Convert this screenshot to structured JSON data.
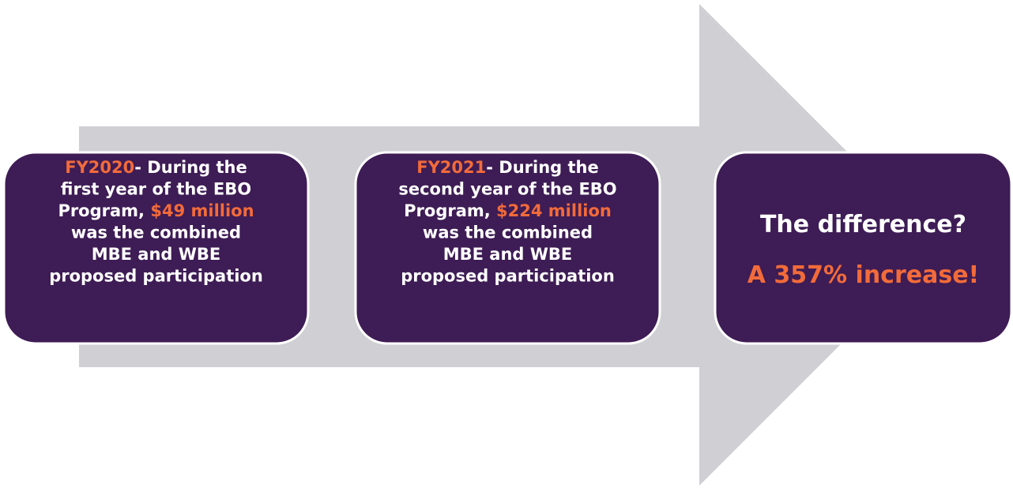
{
  "boxes": [
    {
      "lines": [
        [
          {
            "text": "FY2020",
            "color": "#f26b3a"
          },
          {
            "text": "- During the",
            "color": "#ffffff"
          }
        ],
        [
          {
            "text": "first year of the EBO",
            "color": "#ffffff"
          }
        ],
        [
          {
            "text": "Program, ",
            "color": "#ffffff"
          },
          {
            "text": "$49 million",
            "color": "#f26b3a"
          }
        ],
        [
          {
            "text": "was the combined",
            "color": "#ffffff"
          }
        ],
        [
          {
            "text": "MBE and WBE",
            "color": "#ffffff"
          }
        ],
        [
          {
            "text": "proposed participation",
            "color": "#ffffff"
          }
        ]
      ]
    },
    {
      "lines": [
        [
          {
            "text": "FY2021",
            "color": "#f26b3a"
          },
          {
            "text": "- During the",
            "color": "#ffffff"
          }
        ],
        [
          {
            "text": "second year of the EBO",
            "color": "#ffffff"
          }
        ],
        [
          {
            "text": "Program, ",
            "color": "#ffffff"
          },
          {
            "text": "$224 million",
            "color": "#f26b3a"
          }
        ],
        [
          {
            "text": "was the combined",
            "color": "#ffffff"
          }
        ],
        [
          {
            "text": "MBE and WBE",
            "color": "#ffffff"
          }
        ],
        [
          {
            "text": "proposed participation",
            "color": "#ffffff"
          }
        ]
      ]
    },
    {
      "lines": [
        [
          {
            "text": "The difference?",
            "color": "#ffffff"
          }
        ],
        [
          {
            "text": "A 357% increase!",
            "color": "#f26b3a"
          }
        ]
      ]
    }
  ]
}
